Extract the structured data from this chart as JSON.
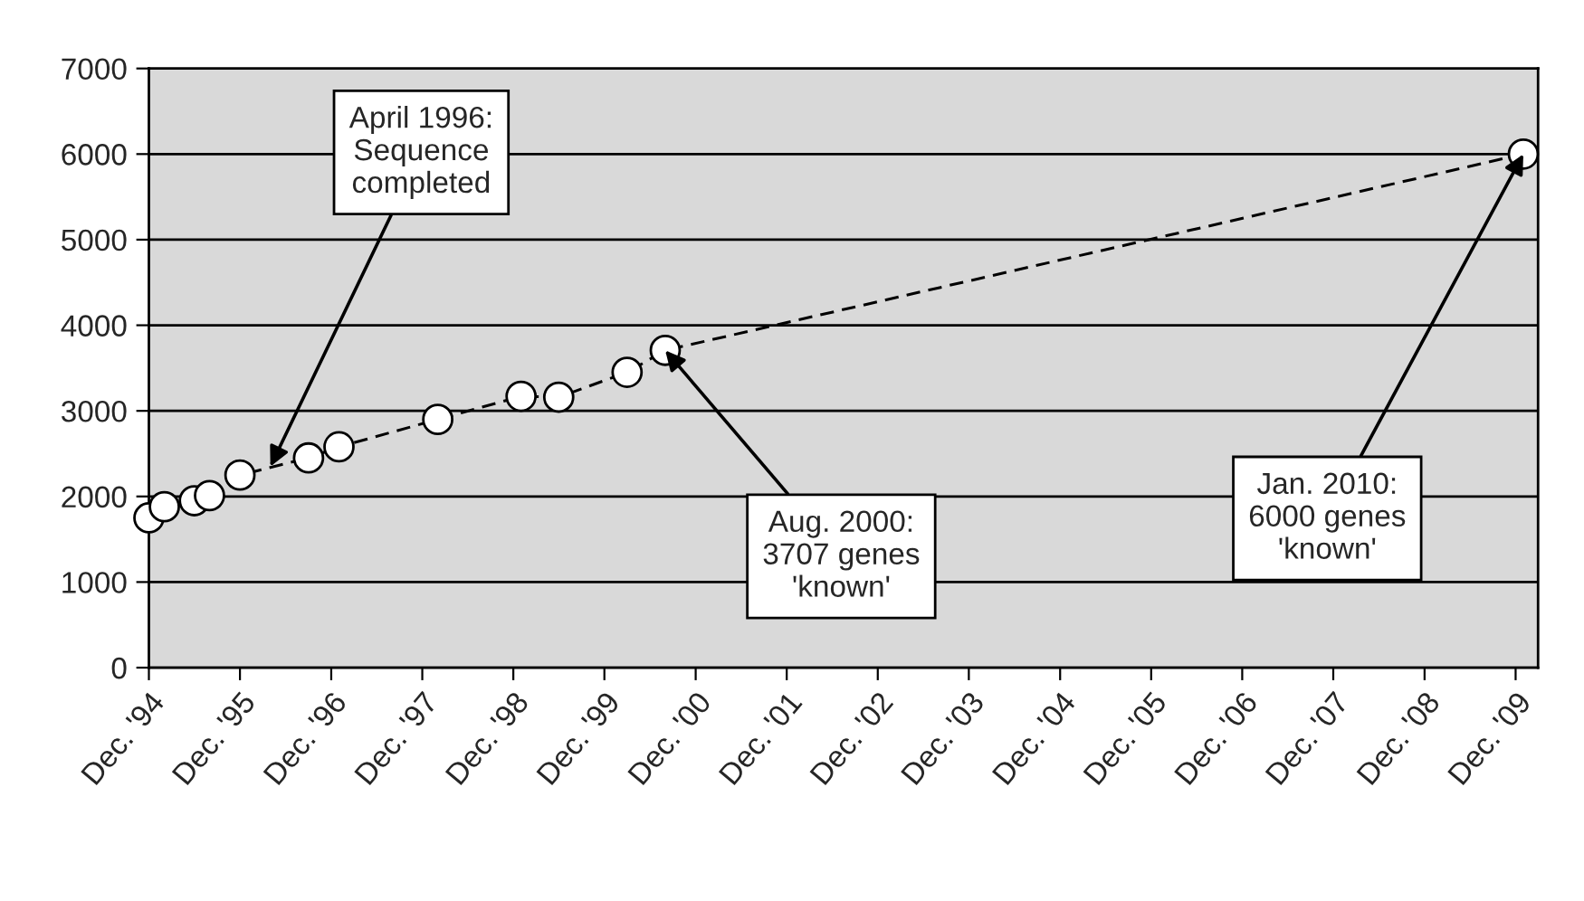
{
  "chart_data": {
    "type": "line",
    "x": [
      "1994-12",
      "1995-02",
      "1995-06",
      "1995-08",
      "1995-12",
      "1996-09",
      "1997-01",
      "1998-02",
      "1999-01",
      "1999-06",
      "2000-03",
      "2000-08",
      "2010-01"
    ],
    "series": [
      {
        "color": "#000000",
        "values": [
          1750,
          1880,
          1950,
          2010,
          2250,
          2450,
          2580,
          2900,
          3170,
          3160,
          3450,
          3707,
          6000
        ]
      }
    ],
    "marker": "circle",
    "line_style": "dashed",
    "grid": "y",
    "legend": false,
    "xlim": [
      "1994-12",
      "2010-03"
    ],
    "xticks": [
      {
        "value": "1994-12",
        "label": "Dec. '94"
      },
      {
        "value": "1995-12",
        "label": "Dec. '95"
      },
      {
        "value": "1996-12",
        "label": "Dec. '96"
      },
      {
        "value": "1997-12",
        "label": "Dec. '97"
      },
      {
        "value": "1998-12",
        "label": "Dec. '98"
      },
      {
        "value": "1999-12",
        "label": "Dec. '99"
      },
      {
        "value": "2000-12",
        "label": "Dec. '00"
      },
      {
        "value": "2001-12",
        "label": "Dec. '01"
      },
      {
        "value": "2002-12",
        "label": "Dec. '02"
      },
      {
        "value": "2003-12",
        "label": "Dec. '03"
      },
      {
        "value": "2004-12",
        "label": "Dec. '04"
      },
      {
        "value": "2005-12",
        "label": "Dec. '05"
      },
      {
        "value": "2006-12",
        "label": "Dec. '06"
      },
      {
        "value": "2007-12",
        "label": "Dec. '07"
      },
      {
        "value": "2008-12",
        "label": "Dec. '08"
      },
      {
        "value": "2009-12",
        "label": "Dec. '09"
      }
    ],
    "ylim": [
      0,
      7000
    ],
    "yticks": [
      0,
      1000,
      2000,
      3000,
      4000,
      5000,
      6000,
      7000
    ],
    "annotations": [
      {
        "text": "April 1996:\nSequence\ncompleted",
        "x": "1996-04",
        "y": 2350
      },
      {
        "text": "Aug. 2000:\n3707 genes\n'known'",
        "x": "2000-08",
        "y": 3707
      },
      {
        "text": "Jan. 2010:\n6000 genes\n'known'",
        "x": "2010-01",
        "y": 6000
      }
    ]
  }
}
